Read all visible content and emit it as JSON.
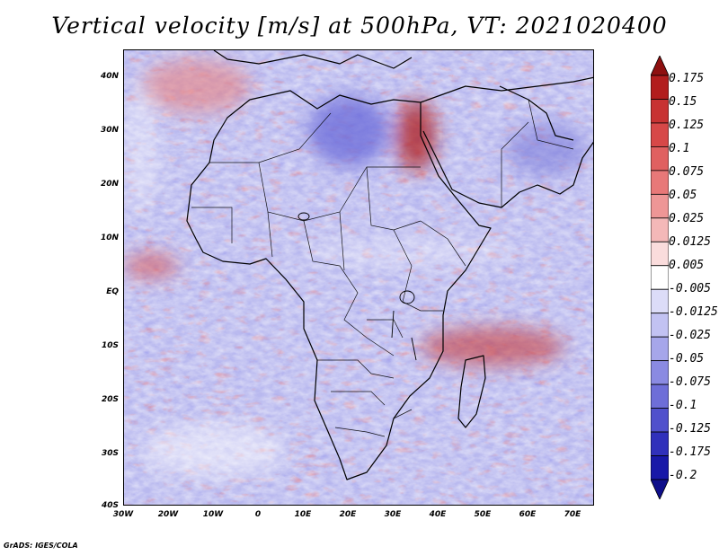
{
  "title": "Vertical velocity [m/s] at 500hPa, VT: 2021020400",
  "credit": "GrADS: IGES/COLA",
  "map": {
    "region": "Africa",
    "variable": "vertical velocity at 500hPa",
    "lon_range": [
      -30,
      75
    ],
    "lat_range": [
      -40,
      45
    ]
  },
  "axes": {
    "lat_labels": [
      "40N",
      "30N",
      "20N",
      "10N",
      "EQ",
      "10S",
      "20S",
      "30S",
      "40S"
    ],
    "lon_labels": [
      "30W",
      "20W",
      "10W",
      "0",
      "10E",
      "20E",
      "30E",
      "40E",
      "50E",
      "60E",
      "70E"
    ]
  },
  "colorbar": {
    "labels": [
      "0.175",
      "0.15",
      "0.125",
      "0.1",
      "0.075",
      "0.05",
      "0.025",
      "0.0125",
      "0.005",
      "-0.005",
      "-0.0125",
      "-0.025",
      "-0.05",
      "-0.075",
      "-0.1",
      "-0.125",
      "-0.175",
      "-0.2"
    ],
    "colors": [
      "#8e1010",
      "#b21d1d",
      "#c83333",
      "#d74848",
      "#e06060",
      "#e87878",
      "#ee9696",
      "#f4b8b8",
      "#fadcdc",
      "#ffffff",
      "#dcdcf8",
      "#c2c2f2",
      "#a6a6ea",
      "#8a8ae2",
      "#6e6ed8",
      "#5050cc",
      "#3030bb",
      "#1818a8",
      "#0e0e8a"
    ]
  }
}
